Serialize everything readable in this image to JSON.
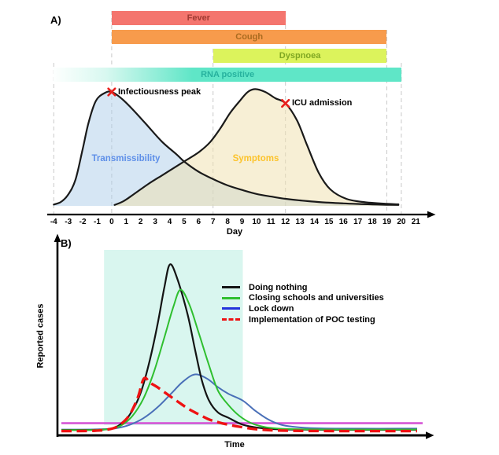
{
  "chart_data": [
    {
      "type": "area",
      "panel_label": "A)",
      "x_label": "Day",
      "x_range": [
        -4,
        21
      ],
      "x_ticks": [
        -4,
        -3,
        -2,
        -1,
        0,
        1,
        2,
        3,
        4,
        5,
        6,
        7,
        8,
        9,
        10,
        11,
        12,
        13,
        14,
        15,
        16,
        17,
        18,
        19,
        20,
        21
      ],
      "grid": "dashed-vertical",
      "gridline_days": [
        -4,
        0,
        7,
        12,
        19,
        20
      ],
      "bars": [
        {
          "label": "Fever",
          "start_day": 0,
          "end_day": 12,
          "color": "#F4756E",
          "label_color": "#A03B33",
          "gradient_left": false
        },
        {
          "label": "Cough",
          "start_day": 0,
          "end_day": 19,
          "color": "#F79B4C",
          "label_color": "#AA6B1F",
          "gradient_left": false
        },
        {
          "label": "Dyspnoea",
          "start_day": 7,
          "end_day": 19,
          "color": "#DCF35C",
          "label_color": "#7FA722",
          "gradient_left": false
        },
        {
          "label": "RNA positive",
          "start_day": -4,
          "end_day": 20,
          "color": "#5FE6C7",
          "label_color": "#26B29E",
          "gradient_left": true
        }
      ],
      "series": [
        {
          "name": "Transmissibility",
          "label_color": "#5E8FE8",
          "fill_color": "#AECDE9",
          "line_color": "#1A1A1A",
          "points": [
            [
              -4,
              0.012
            ],
            [
              -3.5,
              0.035
            ],
            [
              -3,
              0.1
            ],
            [
              -2.5,
              0.23
            ],
            [
              -2,
              0.5
            ],
            [
              -1.6,
              0.73
            ],
            [
              -1.1,
              0.92
            ],
            [
              -0.5,
              0.99
            ],
            [
              0,
              1.0
            ],
            [
              0.7,
              0.94
            ],
            [
              1.5,
              0.84
            ],
            [
              2.5,
              0.7
            ],
            [
              3.5,
              0.56
            ],
            [
              4.5,
              0.45
            ],
            [
              5,
              0.39
            ],
            [
              6,
              0.3
            ],
            [
              7,
              0.235
            ],
            [
              8,
              0.18
            ],
            [
              9,
              0.14
            ],
            [
              10,
              0.105
            ],
            [
              11,
              0.082
            ],
            [
              12,
              0.062
            ],
            [
              13,
              0.048
            ],
            [
              14,
              0.037
            ],
            [
              15,
              0.028
            ],
            [
              16,
              0.022
            ],
            [
              17,
              0.017
            ],
            [
              18,
              0.013
            ],
            [
              19,
              0.01
            ],
            [
              19.8,
              0.008
            ]
          ]
        },
        {
          "name": "Symptoms",
          "label_color": "#FCC32B",
          "fill_color": "#F0DFAC",
          "line_color": "#1A1A1A",
          "points": [
            [
              0.2,
              0.008
            ],
            [
              0.8,
              0.04
            ],
            [
              1.5,
              0.1
            ],
            [
              2.5,
              0.19
            ],
            [
              3.5,
              0.27
            ],
            [
              4.5,
              0.35
            ],
            [
              5,
              0.39
            ],
            [
              6,
              0.47
            ],
            [
              6.8,
              0.56
            ],
            [
              7.5,
              0.68
            ],
            [
              8.2,
              0.82
            ],
            [
              8.9,
              0.93
            ],
            [
              9.4,
              1.0
            ],
            [
              9.9,
              1.025
            ],
            [
              10.6,
              1.0
            ],
            [
              11.3,
              0.945
            ],
            [
              12,
              0.9
            ],
            [
              12.8,
              0.75
            ],
            [
              13.5,
              0.53
            ],
            [
              14.3,
              0.29
            ],
            [
              15.1,
              0.145
            ],
            [
              16.2,
              0.062
            ],
            [
              17.5,
              0.032
            ],
            [
              19,
              0.018
            ],
            [
              19.8,
              0.014
            ]
          ]
        }
      ],
      "annotations": [
        {
          "label": "Infectiousness peak",
          "day": 0,
          "value": 1.0,
          "marker": "x"
        },
        {
          "label": "ICU admission",
          "day": 12,
          "value": 0.9,
          "marker": "x"
        }
      ],
      "marker_color": "#E8201C"
    },
    {
      "type": "line",
      "panel_label": "B)",
      "x_label": "Time",
      "y_label": "Reported cases",
      "x_range": [
        0,
        100
      ],
      "legend_position": "right-of-peak",
      "highlight_region": {
        "x_start": 12,
        "x_end": 51,
        "color": "#D9F6EF"
      },
      "threshold_line": {
        "value": 0.056,
        "color": "#D44ED4"
      },
      "series": [
        {
          "name": "Doing nothing",
          "color": "#141414",
          "legend_color": "#141414",
          "dash": false,
          "points": [
            [
              0,
              0.016
            ],
            [
              8,
              0.016
            ],
            [
              13,
              0.02
            ],
            [
              16,
              0.04
            ],
            [
              19,
              0.1
            ],
            [
              22,
              0.22
            ],
            [
              24.5,
              0.4
            ],
            [
              27,
              0.64
            ],
            [
              29,
              0.87
            ],
            [
              30.5,
              1.0
            ],
            [
              32.5,
              0.92
            ],
            [
              35.5,
              0.7
            ],
            [
              37.5,
              0.5
            ],
            [
              39.5,
              0.31
            ],
            [
              41.5,
              0.19
            ],
            [
              44,
              0.12
            ],
            [
              47,
              0.088
            ],
            [
              51,
              0.047
            ],
            [
              56,
              0.027
            ],
            [
              62,
              0.019
            ],
            [
              80,
              0.017
            ],
            [
              100,
              0.017
            ]
          ]
        },
        {
          "name": "Closing schools and universities",
          "color": "#2FBF2F",
          "legend_color": "#2FBF2F",
          "dash": false,
          "points": [
            [
              0,
              0.015
            ],
            [
              9,
              0.016
            ],
            [
              14,
              0.022
            ],
            [
              17,
              0.045
            ],
            [
              20,
              0.1
            ],
            [
              23,
              0.2
            ],
            [
              26,
              0.36
            ],
            [
              29,
              0.57
            ],
            [
              31.5,
              0.75
            ],
            [
              33.5,
              0.85
            ],
            [
              36,
              0.76
            ],
            [
              38.5,
              0.6
            ],
            [
              41.5,
              0.4
            ],
            [
              44,
              0.25
            ],
            [
              47,
              0.163
            ],
            [
              50,
              0.1
            ],
            [
              53.5,
              0.055
            ],
            [
              57.5,
              0.032
            ],
            [
              62,
              0.023
            ],
            [
              70,
              0.019
            ],
            [
              85,
              0.018
            ],
            [
              100,
              0.018
            ]
          ]
        },
        {
          "name": "Lock down",
          "color": "#4A70B8",
          "legend_color": "#2433DC",
          "dash": false,
          "points": [
            [
              0,
              0.018
            ],
            [
              10,
              0.019
            ],
            [
              15,
              0.025
            ],
            [
              19,
              0.045
            ],
            [
              23,
              0.085
            ],
            [
              27,
              0.15
            ],
            [
              31,
              0.235
            ],
            [
              34,
              0.3
            ],
            [
              37.5,
              0.346
            ],
            [
              41,
              0.32
            ],
            [
              44,
              0.27
            ],
            [
              47,
              0.23
            ],
            [
              51,
              0.19
            ],
            [
              54.5,
              0.13
            ],
            [
              58,
              0.08
            ],
            [
              61.5,
              0.048
            ],
            [
              65,
              0.035
            ],
            [
              70,
              0.027
            ],
            [
              80,
              0.024
            ],
            [
              100,
              0.024
            ]
          ]
        },
        {
          "name": "Implementation of POC testing",
          "color": "#EE1212",
          "legend_color": "#EE1212",
          "dash": true,
          "points": [
            [
              0,
              0.009
            ],
            [
              8,
              0.01
            ],
            [
              13,
              0.018
            ],
            [
              16,
              0.04
            ],
            [
              19,
              0.1
            ],
            [
              21.5,
              0.21
            ],
            [
              23.2,
              0.322
            ],
            [
              25,
              0.295
            ],
            [
              27,
              0.27
            ],
            [
              30.3,
              0.22
            ],
            [
              33,
              0.18
            ],
            [
              35.8,
              0.14
            ],
            [
              38.5,
              0.11
            ],
            [
              41.4,
              0.079
            ],
            [
              44,
              0.062
            ],
            [
              46.9,
              0.047
            ],
            [
              50,
              0.035
            ],
            [
              54,
              0.022
            ],
            [
              58,
              0.015
            ],
            [
              62,
              0.012
            ],
            [
              70,
              0.01
            ],
            [
              85,
              0.009
            ],
            [
              100,
              0.009
            ]
          ]
        }
      ]
    }
  ]
}
